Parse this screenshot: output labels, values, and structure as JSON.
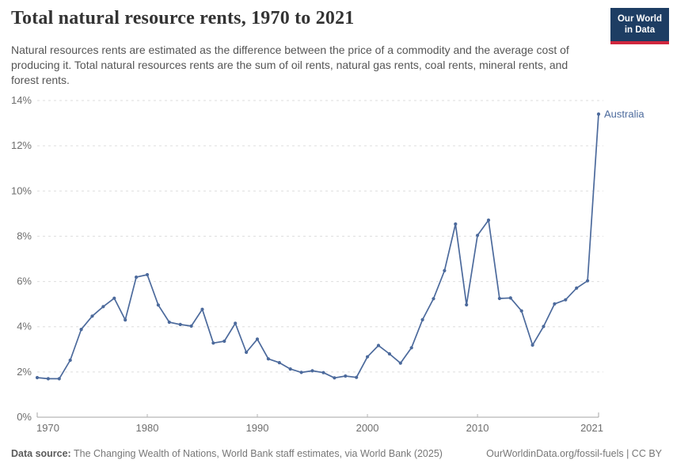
{
  "header": {
    "title": "Total natural resource rents, 1970 to 2021",
    "subtitle": "Natural resources rents are estimated as the difference between the price of a commodity and the average cost of producing it. Total natural resources rents are the sum of oil rents, natural gas rents, coal rents, mineral rents, and forest rents.",
    "logo": {
      "line1": "Our World",
      "line2": "in Data"
    }
  },
  "chart_data": {
    "type": "line",
    "title": "Total natural resource rents, 1970 to 2021",
    "xlabel": "",
    "ylabel": "",
    "xlim": [
      1970,
      2021
    ],
    "ylim": [
      0,
      14
    ],
    "grid": "horizontal-dashed",
    "legend_position": "end-of-line-label",
    "xticks": [
      1970,
      1980,
      1990,
      2000,
      2010,
      2021
    ],
    "xtick_labels": [
      "1970",
      "1980",
      "1990",
      "2000",
      "2010",
      "2021"
    ],
    "yticks": [
      0,
      2,
      4,
      6,
      8,
      10,
      12,
      14
    ],
    "ytick_labels": [
      "0%",
      "2%",
      "4%",
      "6%",
      "8%",
      "10%",
      "12%",
      "14%"
    ],
    "x": [
      1970,
      1971,
      1972,
      1973,
      1974,
      1975,
      1976,
      1977,
      1978,
      1979,
      1980,
      1981,
      1982,
      1983,
      1984,
      1985,
      1986,
      1987,
      1988,
      1989,
      1990,
      1991,
      1992,
      1993,
      1994,
      1995,
      1996,
      1997,
      1998,
      1999,
      2000,
      2001,
      2002,
      2003,
      2004,
      2005,
      2006,
      2007,
      2008,
      2009,
      2010,
      2011,
      2012,
      2013,
      2014,
      2015,
      2016,
      2017,
      2018,
      2019,
      2020,
      2021
    ],
    "series": [
      {
        "name": "Australia",
        "color": "#4C6A9C",
        "values": [
          1.75,
          1.7,
          1.7,
          2.52,
          3.88,
          4.47,
          4.89,
          5.26,
          4.3,
          6.19,
          6.3,
          4.96,
          4.2,
          4.1,
          4.03,
          4.77,
          3.28,
          3.36,
          4.15,
          2.87,
          3.45,
          2.58,
          2.41,
          2.13,
          1.98,
          2.05,
          1.97,
          1.74,
          1.82,
          1.76,
          2.67,
          3.17,
          2.8,
          2.39,
          3.07,
          4.31,
          5.24,
          6.48,
          8.54,
          4.97,
          8.04,
          8.71,
          5.25,
          5.27,
          4.7,
          3.19,
          4.01,
          5.01,
          5.19,
          5.71,
          6.03,
          13.4
        ]
      }
    ],
    "end_label": "Australia"
  },
  "footer": {
    "datasource_label": "Data source:",
    "datasource_text": " The Changing Wealth of Nations, World Bank staff estimates, via World Bank (2025)",
    "link_text": "OurWorldinData.org/fossil-fuels | CC BY"
  },
  "colors": {
    "series_blue": "#4C6A9C",
    "grid": "#dedede",
    "axis": "#a5a5a5",
    "tick": "#b5b5b5",
    "tick_label": "#6e6e6e",
    "title": "#333333",
    "subtitle": "#555555",
    "footer_text": "#777777",
    "logo_bg": "#1d3d63",
    "logo_red": "#d0273e"
  }
}
